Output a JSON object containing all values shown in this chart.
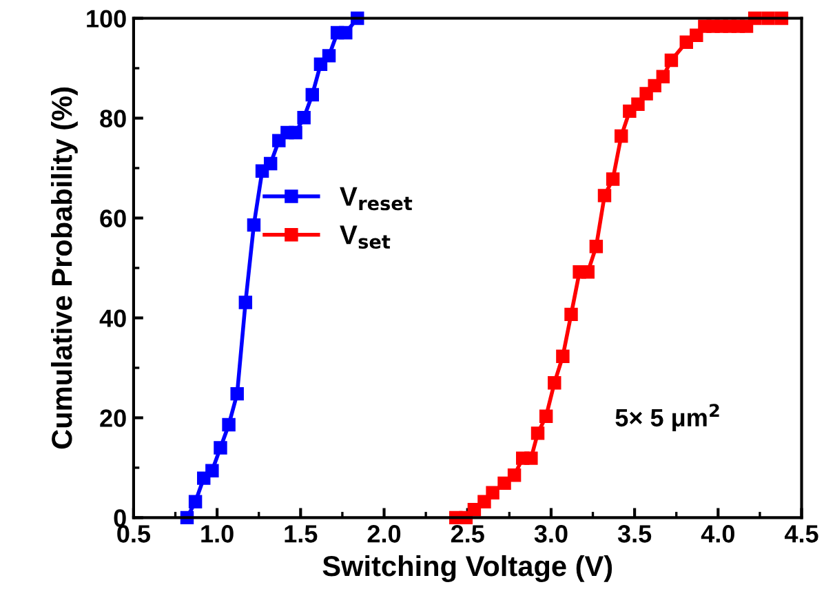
{
  "chart_data": {
    "type": "line",
    "xlabel": "Switching Voltage (V)",
    "ylabel": "Cumulative Probability (%)",
    "xlim": [
      0.5,
      4.5
    ],
    "ylim": [
      0,
      100
    ],
    "xticks": [
      0.5,
      {
        "value": 1,
        "label": "1.0"
      },
      1.5,
      {
        "value": 2,
        "label": "2.0"
      },
      2.5,
      {
        "value": 3,
        "label": "3.0"
      },
      3.5,
      {
        "value": 4,
        "label": "4.0"
      },
      4.5
    ],
    "yticks": [
      0,
      20,
      40,
      60,
      80,
      100
    ],
    "marker": "square",
    "line_style": "solid",
    "grid": false,
    "legend": "center left",
    "annotations": [
      "5× 5 μm$^{2}$"
    ],
    "series": [
      {
        "name": "V$_{reset}$",
        "color": "#0000ff",
        "x": [
          0.82,
          0.87,
          0.92,
          0.97,
          1.02,
          1.07,
          1.12,
          1.17,
          1.22,
          1.27,
          1.32,
          1.37,
          1.42,
          1.47,
          1.52,
          1.57,
          1.62,
          1.67,
          1.72,
          1.77,
          1.84
        ],
        "values": [
          0,
          3.2,
          7.9,
          9.4,
          14,
          18.6,
          24.8,
          43.1,
          58.6,
          69.4,
          70.9,
          75.5,
          77.1,
          77.1,
          80.1,
          84.7,
          90.8,
          92.5,
          97.1,
          97.1,
          100
        ]
      },
      {
        "name": "V$_{set}$",
        "color": "#ff0000",
        "x": [
          2.43,
          2.49,
          2.54,
          2.6,
          2.65,
          2.72,
          2.78,
          2.83,
          2.88,
          2.92,
          2.97,
          3.02,
          3.07,
          3.12,
          3.17,
          3.22,
          3.27,
          3.32,
          3.37,
          3.42,
          3.47,
          3.52,
          3.57,
          3.62,
          3.67,
          3.72,
          3.81,
          3.87,
          3.92,
          3.97,
          4.02,
          4.07,
          4.12,
          4.17,
          4.22,
          4.3,
          4.38
        ],
        "values": [
          0,
          0,
          1.6,
          3.2,
          5,
          6.9,
          8.5,
          11.9,
          11.9,
          16.9,
          20.3,
          27,
          32.3,
          40.7,
          49.2,
          49.2,
          54.3,
          64.5,
          67.8,
          76.4,
          81.4,
          82.8,
          84.9,
          86.5,
          88.3,
          91.6,
          95.2,
          96.6,
          98.4,
          98.4,
          98.4,
          98.4,
          98.4,
          98.4,
          100,
          100,
          100
        ]
      }
    ]
  }
}
